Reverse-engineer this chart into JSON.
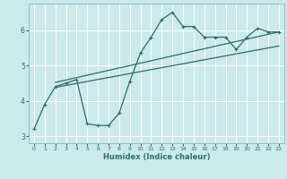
{
  "xlabel": "Humidex (Indice chaleur)",
  "background_color": "#cce9ec",
  "grid_color": "#ffffff",
  "line_color": "#2a7068",
  "x_data": [
    0,
    1,
    2,
    3,
    4,
    5,
    6,
    7,
    8,
    9,
    10,
    11,
    12,
    13,
    14,
    15,
    16,
    17,
    18,
    19,
    20,
    21,
    22,
    23
  ],
  "y_data": [
    3.2,
    3.9,
    4.4,
    4.5,
    4.6,
    3.35,
    3.3,
    3.3,
    3.65,
    4.55,
    5.35,
    5.8,
    6.3,
    6.5,
    6.1,
    6.1,
    5.8,
    5.8,
    5.8,
    5.45,
    5.8,
    6.05,
    5.95,
    5.95
  ],
  "reg_line1_x": [
    2,
    23
  ],
  "reg_line1_y": [
    4.38,
    5.55
  ],
  "reg_line2_x": [
    2,
    23
  ],
  "reg_line2_y": [
    4.52,
    5.95
  ],
  "xlim": [
    -0.5,
    23.5
  ],
  "ylim": [
    2.8,
    6.75
  ],
  "yticks": [
    3,
    4,
    5,
    6
  ],
  "xticks": [
    0,
    1,
    2,
    3,
    4,
    5,
    6,
    7,
    8,
    9,
    10,
    11,
    12,
    13,
    14,
    15,
    16,
    17,
    18,
    19,
    20,
    21,
    22,
    23
  ]
}
